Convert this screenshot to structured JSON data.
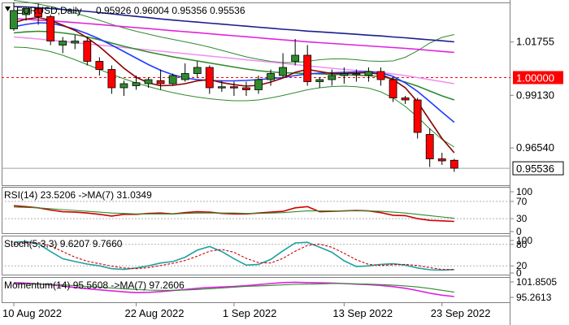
{
  "chart_data": {
    "type": "candlestick",
    "symbol_label": "EURUSD,Daily",
    "ohlc_label": "0.95926 0.96004 0.95356 0.95536",
    "ylim": [
      0.947,
      1.037
    ],
    "y_ticks": [
      {
        "value": 1.01755,
        "label": "1.01755"
      },
      {
        "value": 0.9913,
        "label": "0.99130"
      },
      {
        "value": 0.9654,
        "label": "0.96540"
      }
    ],
    "level_line": {
      "value": 1.0,
      "label": "1.00000",
      "color": "#ff0000"
    },
    "current_price": {
      "value": 0.95536,
      "label": "0.95536"
    },
    "x_ticks": [
      {
        "index": 0,
        "label": "10 Aug 2022"
      },
      {
        "index": 10,
        "label": "22 Aug 2022"
      },
      {
        "index": 18,
        "label": "1 Sep 2022"
      },
      {
        "index": 27,
        "label": "13 Sep 2022"
      },
      {
        "index": 35,
        "label": "23 Sep 2022"
      }
    ],
    "candles": [
      {
        "o": 1.024,
        "h": 1.037,
        "l": 1.023,
        "c": 1.033
      },
      {
        "o": 1.031,
        "h": 1.035,
        "l": 1.028,
        "c": 1.034
      },
      {
        "o": 1.034,
        "h": 1.0365,
        "l": 1.026,
        "c": 1.03
      },
      {
        "o": 1.03,
        "h": 1.031,
        "l": 1.016,
        "c": 1.018
      },
      {
        "o": 1.016,
        "h": 1.02,
        "l": 1.012,
        "c": 1.018
      },
      {
        "o": 1.017,
        "h": 1.021,
        "l": 1.014,
        "c": 1.018
      },
      {
        "o": 1.018,
        "h": 1.02,
        "l": 1.006,
        "c": 1.008
      },
      {
        "o": 1.008,
        "h": 1.01,
        "l": 1.001,
        "c": 1.004
      },
      {
        "o": 1.004,
        "h": 1.006,
        "l": 0.992,
        "c": 0.995
      },
      {
        "o": 0.995,
        "h": 0.9985,
        "l": 0.991,
        "c": 0.997
      },
      {
        "o": 0.996,
        "h": 1.001,
        "l": 0.994,
        "c": 0.9975
      },
      {
        "o": 0.997,
        "h": 1.0,
        "l": 0.995,
        "c": 0.999
      },
      {
        "o": 0.9985,
        "h": 1.004,
        "l": 0.994,
        "c": 0.997
      },
      {
        "o": 0.997,
        "h": 1.002,
        "l": 0.996,
        "c": 1.001
      },
      {
        "o": 0.999,
        "h": 1.007,
        "l": 0.998,
        "c": 1.002
      },
      {
        "o": 1.002,
        "h": 1.008,
        "l": 1.0,
        "c": 1.005
      },
      {
        "o": 1.005,
        "h": 1.006,
        "l": 0.992,
        "c": 0.995
      },
      {
        "o": 0.9955,
        "h": 0.9985,
        "l": 0.993,
        "c": 0.9955
      },
      {
        "o": 0.9955,
        "h": 0.998,
        "l": 0.991,
        "c": 0.995
      },
      {
        "o": 0.995,
        "h": 0.998,
        "l": 0.991,
        "c": 0.994
      },
      {
        "o": 0.994,
        "h": 1.001,
        "l": 0.992,
        "c": 0.999
      },
      {
        "o": 0.999,
        "h": 1.004,
        "l": 0.996,
        "c": 1.002
      },
      {
        "o": 1.001,
        "h": 1.012,
        "l": 1.0,
        "c": 1.005
      },
      {
        "o": 1.008,
        "h": 1.019,
        "l": 1.006,
        "c": 1.011
      },
      {
        "o": 1.011,
        "h": 1.016,
        "l": 0.996,
        "c": 0.998
      },
      {
        "o": 0.998,
        "h": 1.0,
        "l": 0.995,
        "c": 0.999
      },
      {
        "o": 0.999,
        "h": 1.004,
        "l": 0.996,
        "c": 1.001
      },
      {
        "o": 1.001,
        "h": 1.005,
        "l": 0.997,
        "c": 1.002
      },
      {
        "o": 1.002,
        "h": 1.004,
        "l": 0.998,
        "c": 1.002
      },
      {
        "o": 1.001,
        "h": 1.005,
        "l": 0.998,
        "c": 1.003
      },
      {
        "o": 1.003,
        "h": 1.005,
        "l": 0.996,
        "c": 0.999
      },
      {
        "o": 0.999,
        "h": 1.0,
        "l": 0.988,
        "c": 0.99
      },
      {
        "o": 0.99,
        "h": 0.991,
        "l": 0.987,
        "c": 0.989
      },
      {
        "o": 0.989,
        "h": 0.99,
        "l": 0.97,
        "c": 0.973
      },
      {
        "o": 0.972,
        "h": 0.975,
        "l": 0.956,
        "c": 0.96
      },
      {
        "o": 0.96,
        "h": 0.963,
        "l": 0.957,
        "c": 0.959
      },
      {
        "o": 0.9593,
        "h": 0.96,
        "l": 0.9536,
        "c": 0.9554
      }
    ],
    "overlays": [
      {
        "color": "#1c1c8c",
        "values": [
          1.035,
          1.0348,
          1.0344,
          1.034,
          1.0335,
          1.0331,
          1.0326,
          1.032,
          1.0314,
          1.0307,
          1.0301,
          1.0295,
          1.0289,
          1.0283,
          1.0278,
          1.0273,
          1.0268,
          1.0263,
          1.0258,
          1.0253,
          1.0248,
          1.0243,
          1.0238,
          1.0234,
          1.0229,
          1.0225,
          1.0221,
          1.0217,
          1.0213,
          1.0209,
          1.0205,
          1.02,
          1.0196,
          1.0191,
          1.0186,
          1.0181,
          1.0176
        ]
      },
      {
        "color": "#e020e0",
        "values": [
          1.029,
          1.0287,
          1.0283,
          1.0279,
          1.0275,
          1.0271,
          1.0266,
          1.0261,
          1.0256,
          1.0251,
          1.0246,
          1.0241,
          1.0236,
          1.0231,
          1.0226,
          1.0221,
          1.0216,
          1.0211,
          1.0206,
          1.0201,
          1.0196,
          1.0191,
          1.0186,
          1.0181,
          1.0176,
          1.0172,
          1.0168,
          1.0164,
          1.016,
          1.0156,
          1.0152,
          1.0148,
          1.0144,
          1.0139,
          1.0134,
          1.0129,
          1.0124
        ]
      },
      {
        "color": "#f090f0",
        "values": [
          1.02,
          1.0195,
          1.019,
          1.0184,
          1.0178,
          1.0172,
          1.0166,
          1.016,
          1.0154,
          1.0148,
          1.0142,
          1.0136,
          1.013,
          1.0124,
          1.0118,
          1.0112,
          1.0106,
          1.01,
          1.0094,
          1.0088,
          1.0082,
          1.0076,
          1.007,
          1.0064,
          1.0058,
          1.0052,
          1.0046,
          1.004,
          1.0035,
          1.003,
          1.0025,
          1.0018,
          1.001,
          1.0,
          0.999,
          0.998,
          0.997
        ]
      },
      {
        "color": "#2e8b2e",
        "values": [
          1.022,
          1.0225,
          1.0228,
          1.0226,
          1.022,
          1.0212,
          1.02,
          1.0186,
          1.017,
          1.0154,
          1.014,
          1.0126,
          1.0114,
          1.0102,
          1.0092,
          1.0082,
          1.0072,
          1.0062,
          1.0052,
          1.0042,
          1.0034,
          1.0028,
          1.0024,
          1.0022,
          1.002,
          1.0018,
          1.0016,
          1.0014,
          1.0012,
          1.001,
          1.0004,
          0.9994,
          0.9978,
          0.9958,
          0.9934,
          0.991,
          0.989
        ]
      },
      {
        "color": "#1e3cff",
        "values": [
          1.025,
          1.0262,
          1.027,
          1.0268,
          1.0255,
          1.0238,
          1.0216,
          1.019,
          1.016,
          1.0128,
          1.0096,
          1.0064,
          1.0036,
          1.0014,
          0.9998,
          0.999,
          0.9986,
          0.9984,
          0.9984,
          0.9986,
          0.999,
          0.9995,
          1.0,
          1.001,
          1.0018,
          1.0022,
          1.0024,
          1.0026,
          1.0028,
          1.003,
          1.0024,
          1.0006,
          0.9974,
          0.9932,
          0.9882,
          0.983,
          0.978
        ]
      },
      {
        "color": "#8b0000",
        "values": [
          1.027,
          1.0288,
          1.0296,
          1.0282,
          1.0258,
          1.0232,
          1.0196,
          1.0152,
          1.01,
          1.0046,
          1.0002,
          0.9974,
          0.996,
          0.9962,
          0.997,
          0.9984,
          0.999,
          0.9975,
          0.9965,
          0.9958,
          0.9962,
          0.9978,
          0.9998,
          1.0026,
          1.004,
          1.003,
          1.002,
          1.002,
          1.0022,
          1.0024,
          1.0016,
          0.999,
          0.995,
          0.988,
          0.979,
          0.97,
          0.963
        ]
      }
    ],
    "bollinger": {
      "color": "#2e8b2e",
      "upper": [
        1.038,
        1.0372,
        1.0362,
        1.035,
        1.0335,
        1.0318,
        1.03,
        1.0282,
        1.0262,
        1.0244,
        1.0228,
        1.0214,
        1.02,
        1.0188,
        1.0176,
        1.0164,
        1.015,
        1.0134,
        1.0118,
        1.0102,
        1.009,
        1.008,
        1.0074,
        1.0074,
        1.008,
        1.0088,
        1.0092,
        1.0092,
        1.0088,
        1.0082,
        1.008,
        1.0082,
        1.01,
        1.0132,
        1.017,
        1.0198,
        1.0212
      ],
      "lower": [
        1.015,
        1.0148,
        1.014,
        1.0128,
        1.011,
        1.0088,
        1.0064,
        1.004,
        1.0016,
        0.9994,
        0.9974,
        0.9956,
        0.994,
        0.9926,
        0.9914,
        0.9904,
        0.9896,
        0.989,
        0.9886,
        0.9886,
        0.989,
        0.99,
        0.9912,
        0.9926,
        0.994,
        0.995,
        0.9956,
        0.9958,
        0.9955,
        0.9948,
        0.993,
        0.99,
        0.9858,
        0.9806,
        0.9748,
        0.9696,
        0.9658
      ]
    },
    "panels": [
      {
        "name": "RSI",
        "label": "RSI(14) 23.5206   ->MA(7) 31.0349",
        "ylim": [
          0,
          100
        ],
        "ticks": [
          {
            "value": 100,
            "label": "100"
          },
          {
            "value": 70,
            "label": "70"
          },
          {
            "value": 30,
            "label": "30"
          },
          {
            "value": 0,
            "label": "0"
          }
        ],
        "dotted_levels": [
          70,
          30
        ],
        "lines": [
          {
            "color": "#d00000",
            "values": [
              60,
              58,
              55,
              50,
              46,
              45,
              43,
              40,
              36,
              40,
              40,
              42,
              43,
              41,
              44,
              46,
              45,
              42,
              41,
              41,
              43,
              45,
              47,
              55,
              58,
              46,
              47,
              48,
              49,
              48,
              44,
              38,
              37,
              30,
              26,
              25,
              23.5
            ]
          },
          {
            "color": "#2e8b2e",
            "values": [
              57,
              56,
              55,
              53,
              51,
              49,
              47,
              45,
              43,
              42,
              41,
              41,
              41,
              41,
              42,
              43,
              43,
              43,
              43,
              42,
              42,
              43,
              44,
              46,
              48,
              48,
              48,
              48,
              48,
              48,
              47,
              45,
              43,
              40,
              37,
              34,
              31
            ]
          }
        ]
      },
      {
        "name": "Stoch",
        "label": "Stoch(5,3,3) 9.6207 9.7660",
        "ylim": [
          0,
          100
        ],
        "ticks": [
          {
            "value": 100,
            "label": "100"
          },
          {
            "value": 80,
            "label": "80"
          },
          {
            "value": 20,
            "label": "20"
          },
          {
            "value": 0,
            "label": "0"
          }
        ],
        "dotted_levels": [
          80,
          20
        ],
        "lines": [
          {
            "color": "#20a0a0",
            "values": [
              86,
              88,
              82,
              60,
              40,
              32,
              25,
              20,
              12,
              10,
              14,
              20,
              28,
              32,
              44,
              64,
              74,
              60,
              40,
              22,
              24,
              38,
              62,
              84,
              86,
              72,
              58,
              34,
              18,
              20,
              24,
              26,
              22,
              14,
              9,
              8,
              9.6
            ]
          },
          {
            "color": "#d00000",
            "values": [
              80,
              84,
              85,
              76,
              60,
              44,
              33,
              26,
              19,
              14,
              12,
              15,
              21,
              27,
              35,
              47,
              61,
              66,
              58,
              41,
              29,
              28,
              41,
              61,
              77,
              81,
              72,
              55,
              37,
              24,
              21,
              23,
              24,
              21,
              15,
              10,
              9.8
            ]
          }
        ]
      },
      {
        "name": "Momentum",
        "label": "Momentum(14) 95.5608   ->MA(7) 97.2606",
        "ylim": [
          94,
          102.5
        ],
        "ticks": [
          {
            "value": 101.8505,
            "label": "101.8505"
          },
          {
            "value": 95.2613,
            "label": "95.2613"
          }
        ],
        "dotted_levels": [],
        "lines": [
          {
            "color": "#e020e0",
            "values": [
              101.0,
              100.8,
              100.5,
              100.1,
              99.6,
              99.1,
              98.6,
              98.2,
              97.8,
              97.4,
              97.1,
              97.2,
              97.5,
              97.9,
              98.3,
              98.8,
              99.1,
              99.3,
              99.5,
              99.8,
              100.2,
              100.6,
              101.0,
              101.1,
              101.0,
              100.9,
              100.8,
              100.6,
              100.4,
              100.2,
              99.9,
              99.4,
              98.8,
              97.9,
              96.9,
              96.1,
              95.56
            ]
          },
          {
            "color": "#2e8b2e",
            "values": [
              100.5,
              100.5,
              100.4,
              100.3,
              100.1,
              99.8,
              99.5,
              99.2,
              98.9,
              98.6,
              98.3,
              98.1,
              98.0,
              98.0,
              98.1,
              98.3,
              98.6,
              98.9,
              99.2,
              99.5,
              99.7,
              99.9,
              100.1,
              100.3,
              100.4,
              100.5,
              100.6,
              100.6,
              100.5,
              100.4,
              100.2,
              100.0,
              99.7,
              99.3,
              98.7,
              98.0,
              97.26
            ]
          }
        ]
      }
    ]
  }
}
